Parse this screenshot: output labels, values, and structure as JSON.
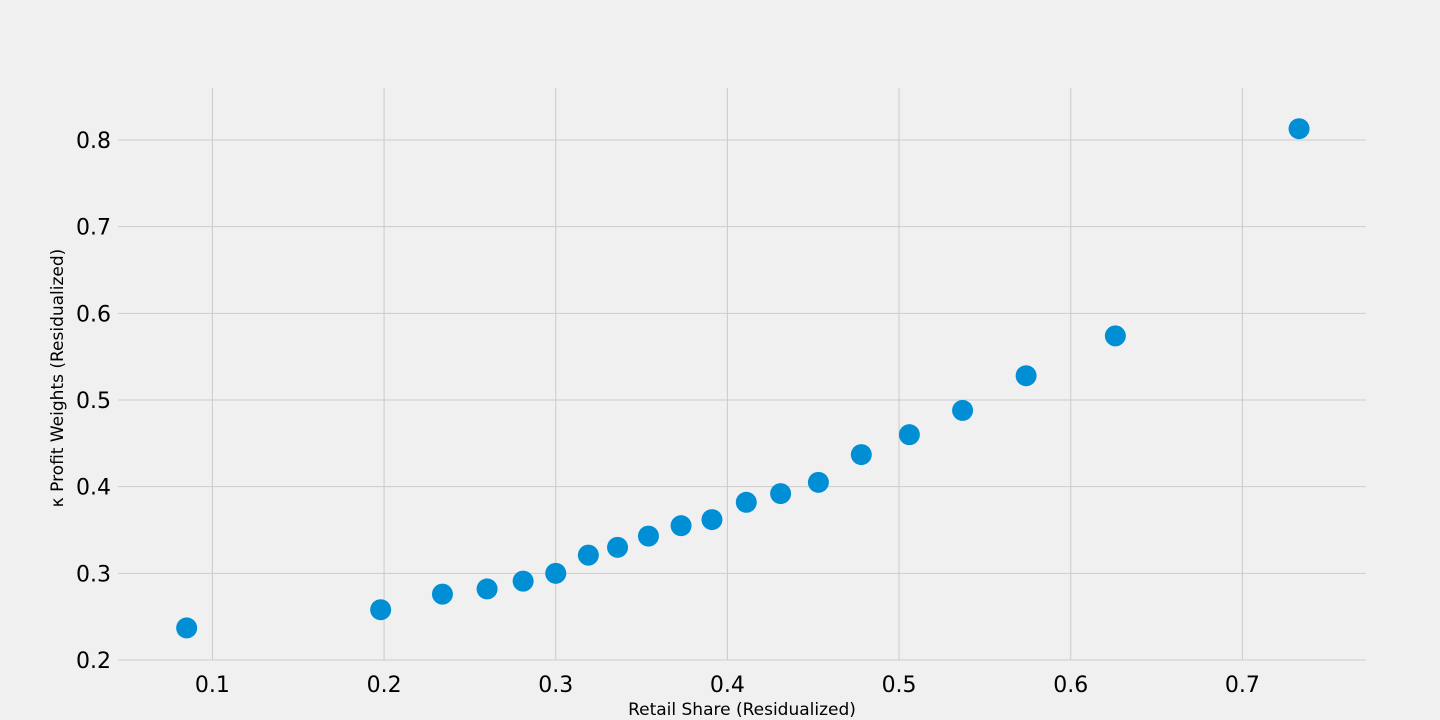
{
  "chart_data": {
    "type": "scatter",
    "title": "",
    "xlabel": "Retail Share (Residualized)",
    "ylabel": "κ Profit Weights (Residualized)",
    "xlim": [
      0.045,
      0.772
    ],
    "ylim": [
      0.2,
      0.86
    ],
    "xticks": [
      0.1,
      0.2,
      0.3,
      0.4,
      0.5,
      0.6,
      0.7
    ],
    "xtick_labels": [
      "0.1",
      "0.2",
      "0.3",
      "0.4",
      "0.5",
      "0.6",
      "0.7"
    ],
    "yticks": [
      0.2,
      0.3,
      0.4,
      0.5,
      0.6,
      0.7,
      0.8
    ],
    "ytick_labels": [
      "0.2",
      "0.3",
      "0.4",
      "0.5",
      "0.6",
      "0.7",
      "0.8"
    ],
    "grid": true,
    "point_color": "#008fd5",
    "background_color": "#f0f0f0",
    "grid_color": "#cbcbcb",
    "points": [
      {
        "x": 0.085,
        "y": 0.237
      },
      {
        "x": 0.198,
        "y": 0.258
      },
      {
        "x": 0.234,
        "y": 0.276
      },
      {
        "x": 0.26,
        "y": 0.282
      },
      {
        "x": 0.281,
        "y": 0.291
      },
      {
        "x": 0.3,
        "y": 0.3
      },
      {
        "x": 0.319,
        "y": 0.321
      },
      {
        "x": 0.336,
        "y": 0.33
      },
      {
        "x": 0.354,
        "y": 0.343
      },
      {
        "x": 0.373,
        "y": 0.355
      },
      {
        "x": 0.391,
        "y": 0.362
      },
      {
        "x": 0.411,
        "y": 0.382
      },
      {
        "x": 0.431,
        "y": 0.392
      },
      {
        "x": 0.453,
        "y": 0.405
      },
      {
        "x": 0.478,
        "y": 0.437
      },
      {
        "x": 0.506,
        "y": 0.46
      },
      {
        "x": 0.537,
        "y": 0.488
      },
      {
        "x": 0.574,
        "y": 0.528
      },
      {
        "x": 0.626,
        "y": 0.574
      },
      {
        "x": 0.733,
        "y": 0.813
      }
    ]
  }
}
